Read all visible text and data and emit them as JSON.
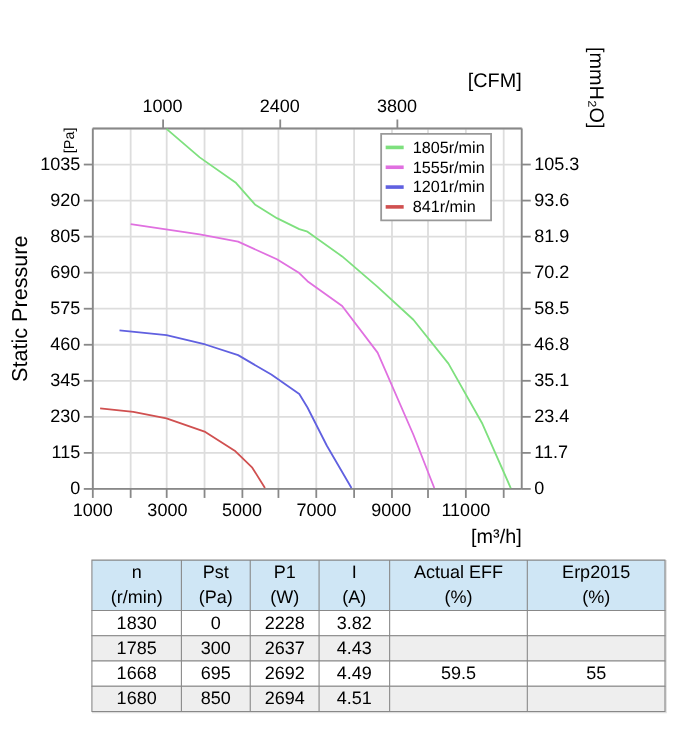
{
  "chart_data": {
    "type": "line",
    "ylabel": "Static Pressure",
    "xlabel": "[m³/h]",
    "x2label": "[CFM]",
    "y2label": "[mmH₂O]",
    "xlim": [
      1000,
      12500
    ],
    "xticks": [
      1000,
      {
        "value": 2000,
        "label": null
      },
      3000,
      {
        "value": 4000,
        "label": null
      },
      5000,
      {
        "value": 6000,
        "label": null
      },
      7000,
      {
        "value": 8000,
        "label": null
      },
      9000,
      {
        "value": 10000,
        "label": null
      },
      11000,
      {
        "value": 12000,
        "label": null
      }
    ],
    "x2lim": [
      166,
      5290
    ],
    "x2ticks": [
      1000,
      2400,
      3800
    ],
    "ylim": [
      0,
      1150
    ],
    "yticks": [
      0,
      115,
      230,
      345,
      460,
      575,
      690,
      805,
      920,
      1035
    ],
    "y2lim": [
      0,
      117
    ],
    "y2ticks": [
      0,
      11.7,
      23.4,
      35.1,
      46.8,
      58.5,
      70.2,
      81.9,
      93.6,
      105.3
    ],
    "grid": true,
    "legend": "top right",
    "marker": "none",
    "line_style": "solid",
    "series": [
      {
        "name": "1805r/min",
        "color": "#7ee07e",
        "x": [
          3000,
          3890,
          4850,
          5370,
          5960,
          6560,
          6780,
          7710,
          8660,
          9620,
          10560,
          11470,
          12230
        ],
        "values": [
          1146,
          1055,
          975,
          905,
          861,
          826,
          818,
          739,
          642,
          537,
          397,
          205,
          0
        ]
      },
      {
        "name": "1555r/min",
        "color": "#e070e0",
        "x": [
          2040,
          3890,
          4920,
          5960,
          6560,
          6780,
          7710,
          8660,
          9620,
          10180
        ],
        "values": [
          842,
          809,
          786,
          730,
          686,
          660,
          581,
          432,
          170,
          0
        ]
      },
      {
        "name": "1201r/min",
        "color": "#6060e0",
        "x": [
          1740,
          3000,
          4040,
          4920,
          5810,
          6560,
          6780,
          7300,
          7960
        ],
        "values": [
          503,
          488,
          458,
          424,
          362,
          300,
          257,
          135,
          0
        ]
      },
      {
        "name": "841r/min",
        "color": "#d05050",
        "x": [
          1220,
          2110,
          3000,
          4040,
          4850,
          5300,
          5640
        ],
        "values": [
          254,
          243,
          222,
          179,
          117,
          65,
          0
        ]
      }
    ],
    "annotations": [
      "[Pa]",
      "n\n(r/min)",
      "Pst\n(Pa)",
      "P1\n(W)",
      "I\n(A)",
      "Actual EFF\n(%)",
      "Erp2015\n(%)",
      "1830",
      "0",
      "2228",
      "3.82",
      null,
      null,
      "1785",
      "300",
      "2637",
      "4.43",
      null,
      null,
      "1668",
      "695",
      "2692",
      "4.49",
      "59.5",
      "55",
      "1680",
      "850",
      "2694",
      "4.51",
      null,
      null
    ]
  }
}
